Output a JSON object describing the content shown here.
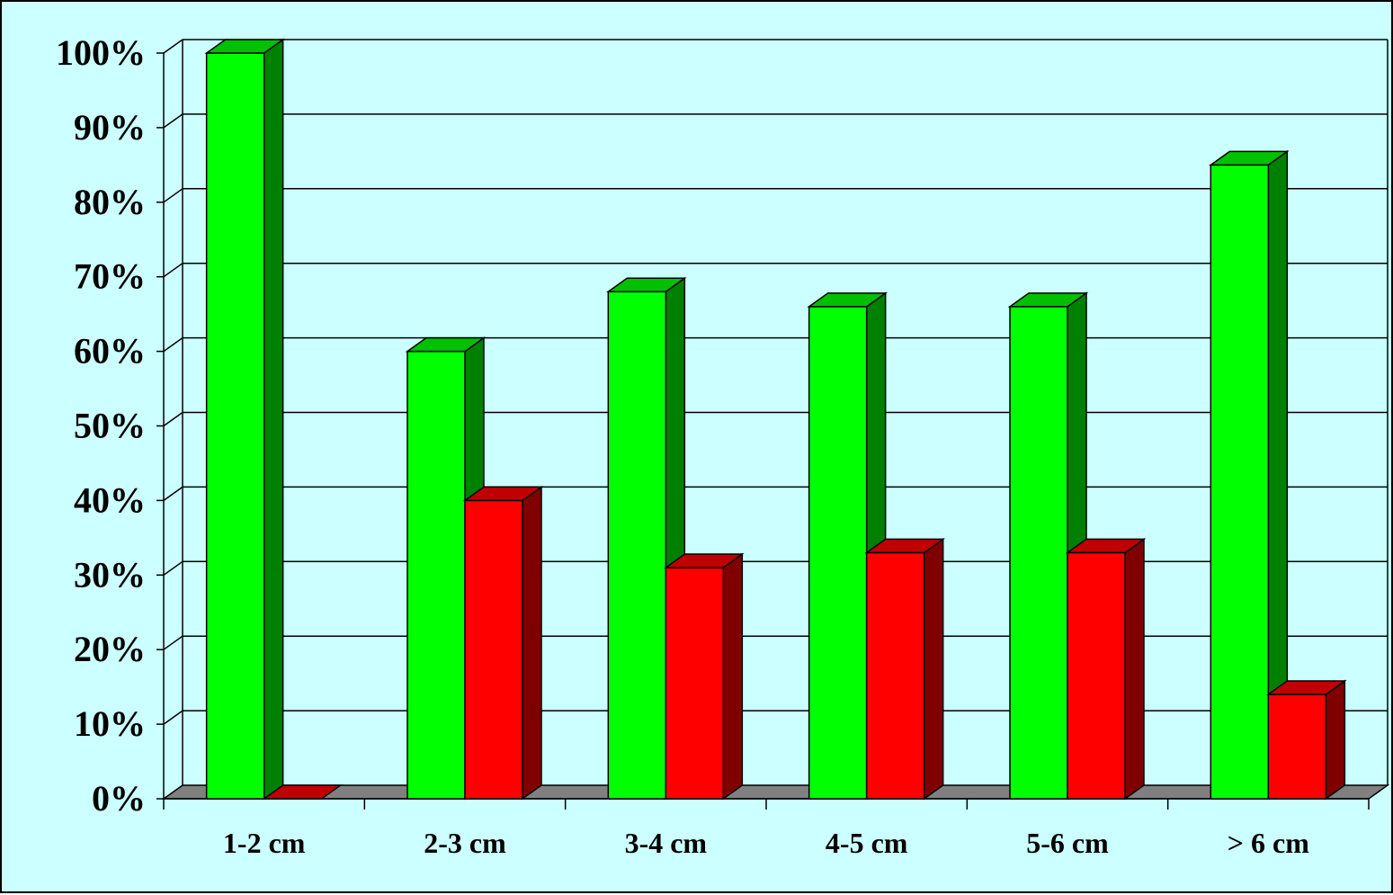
{
  "chart_data": {
    "type": "bar",
    "style": "3d-clustered-column",
    "categories": [
      "1-2 cm",
      "2-3 cm",
      "3-4 cm",
      "4-5 cm",
      "5-6 cm",
      "> 6 cm"
    ],
    "series": [
      {
        "values": [
          100,
          60,
          68,
          66,
          66,
          85
        ],
        "color": "#00ff00",
        "side_color": "#008000",
        "top_color": "#00c000"
      },
      {
        "values": [
          0,
          40,
          31,
          33,
          33,
          14
        ],
        "color": "#ff0000",
        "side_color": "#800000",
        "top_color": "#c00000"
      }
    ],
    "y_ticks": [
      "0%",
      "10%",
      "20%",
      "30%",
      "40%",
      "50%",
      "60%",
      "70%",
      "80%",
      "90%",
      "100%"
    ],
    "ylim": [
      0,
      100
    ],
    "grid": true,
    "legend": "none",
    "colors": {
      "background": "#ccffff",
      "floor": "#808080",
      "gridline": "#000000"
    }
  }
}
